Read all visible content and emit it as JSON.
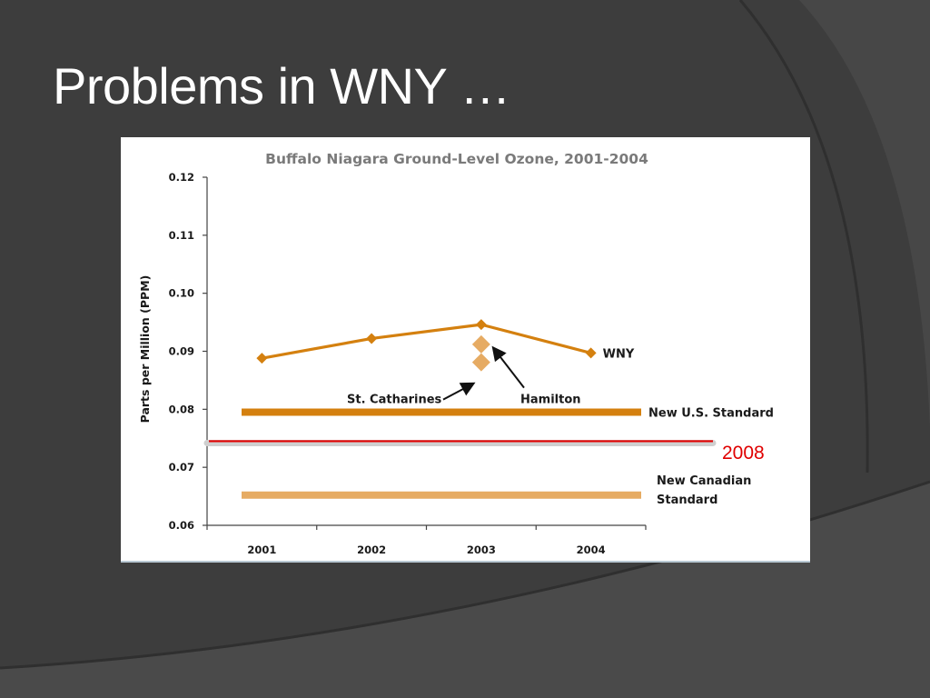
{
  "slide": {
    "title": "Problems in WNY …",
    "colors": {
      "background": "#3d3d3d",
      "title": "#ffffff"
    }
  },
  "annotation_2008": {
    "label": "2008",
    "y": 0.0745,
    "color": "#e00000"
  },
  "chart_data": {
    "type": "line",
    "title": "Buffalo Niagara Ground-Level Ozone, 2001-2004",
    "xlabel": "",
    "ylabel": "Parts per Million (PPM)",
    "categories": [
      "2001",
      "2002",
      "2003",
      "2004"
    ],
    "ylim": [
      0.06,
      0.12
    ],
    "yticks": [
      0.06,
      0.07,
      0.08,
      0.09,
      0.1,
      0.11,
      0.12
    ],
    "ytick_labels": [
      "0.06",
      "0.07",
      "0.08",
      "0.09",
      "0.10",
      "0.11",
      "0.12"
    ],
    "grid": false,
    "series": [
      {
        "name": "WNY",
        "values": [
          0.0888,
          0.0922,
          0.0946,
          0.0897
        ],
        "color": "#d4800f"
      }
    ],
    "points": [
      {
        "name": "Hamilton",
        "x": "2003",
        "value": 0.0912,
        "color": "#e6ab63"
      },
      {
        "name": "St. Catharines",
        "x": "2003",
        "value": 0.0881,
        "color": "#e6ab63"
      }
    ],
    "reference_lines": [
      {
        "name": "New U.S. Standard",
        "value": 0.0795,
        "color": "#d4800f"
      },
      {
        "name": "New Canadian Standard",
        "label_lines": [
          "New Canadian",
          "Standard"
        ],
        "value": 0.0652,
        "color": "#e6ab63"
      }
    ]
  }
}
